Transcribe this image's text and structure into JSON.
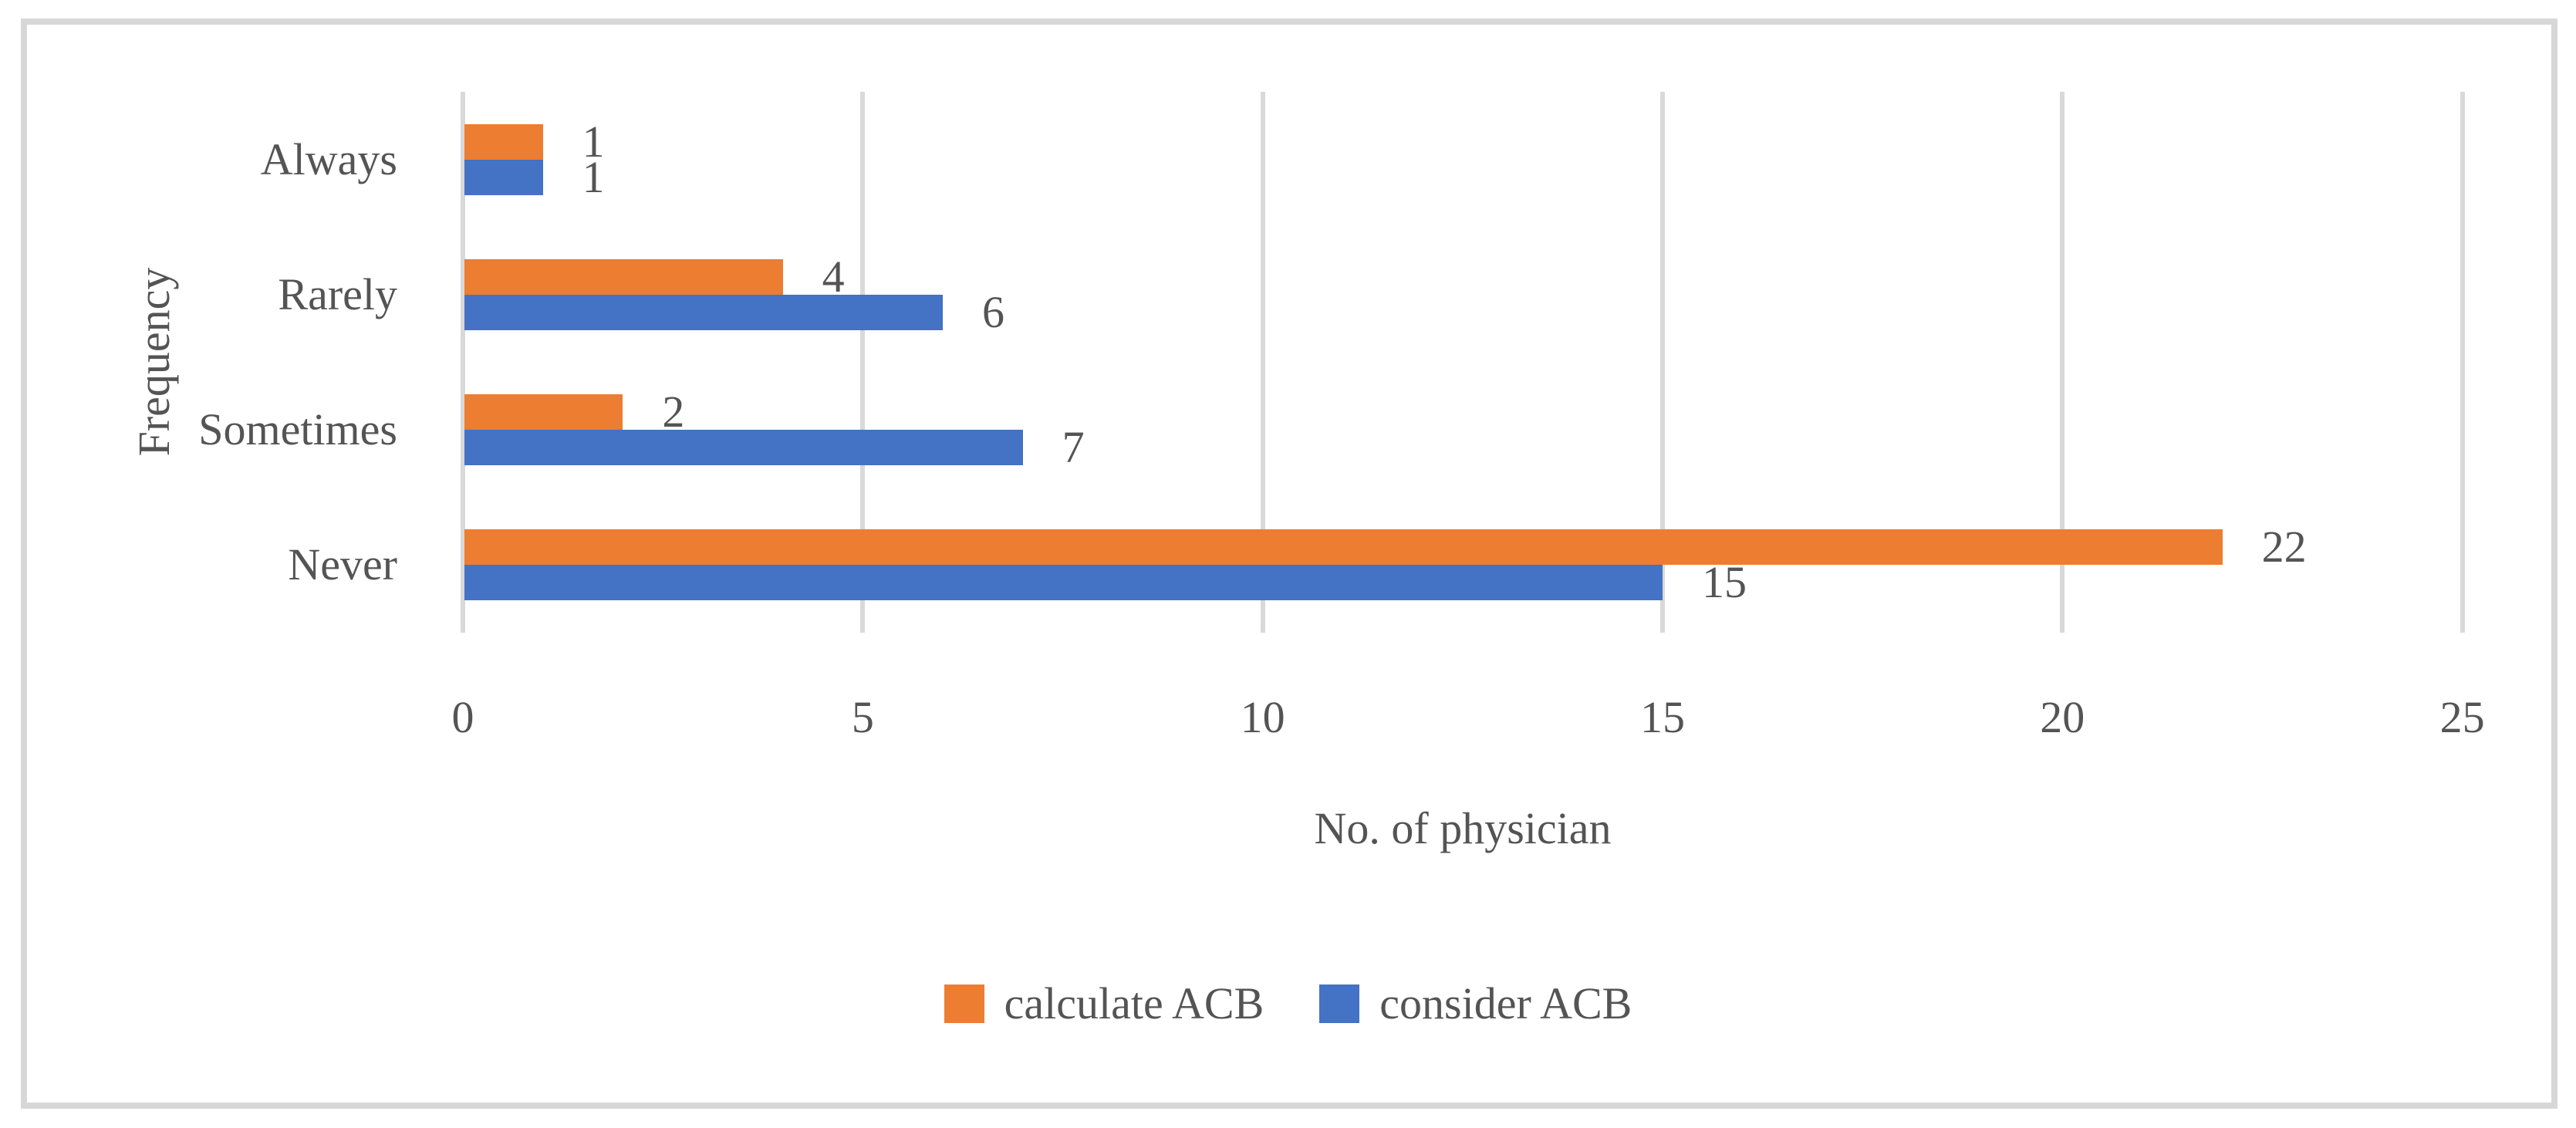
{
  "chart_data": {
    "type": "bar",
    "orientation": "horizontal",
    "categories": [
      "Always",
      "Rarely",
      "Sometimes",
      "Never"
    ],
    "series": [
      {
        "name": "calculate ACB",
        "color": "#ED7D31",
        "values": [
          1,
          4,
          2,
          22
        ]
      },
      {
        "name": "consider ACB",
        "color": "#4472C4",
        "values": [
          1,
          6,
          7,
          15
        ]
      }
    ],
    "xlabel": "No. of physician",
    "ylabel": "Frequency",
    "xlim": [
      0,
      25
    ],
    "xticks": [
      0,
      5,
      10,
      15,
      20,
      25
    ],
    "grid": true,
    "data_labels": true,
    "legend_position": "bottom"
  },
  "colors": {
    "series_calculate": "#ED7D31",
    "series_consider": "#4472C4",
    "gridline": "#d9d9d9",
    "frame_border": "#d7d7d7",
    "text": "#545454",
    "background": "#ffffff"
  }
}
